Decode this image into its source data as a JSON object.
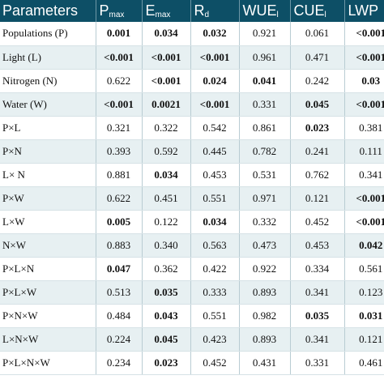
{
  "headers": [
    {
      "main": "Parameters",
      "sub": ""
    },
    {
      "main": "P",
      "sub": "max"
    },
    {
      "main": "E",
      "sub": "max"
    },
    {
      "main": "R",
      "sub": "d"
    },
    {
      "main": "WUE",
      "sub": "l"
    },
    {
      "main": "CUE",
      "sub": "l"
    },
    {
      "main": "LWP",
      "sub": ""
    }
  ],
  "rows": [
    {
      "label": "Populations (P)",
      "values": [
        "0.001",
        "0.034",
        "0.032",
        "0.921",
        "0.061",
        "<0.001"
      ],
      "bold": [
        true,
        true,
        true,
        false,
        false,
        true
      ]
    },
    {
      "label": "Light (L)",
      "values": [
        "<0.001",
        "<0.001",
        "<0.001",
        "0.961",
        "0.471",
        "<0.001"
      ],
      "bold": [
        true,
        true,
        true,
        false,
        false,
        true
      ]
    },
    {
      "label": "Nitrogen (N)",
      "values": [
        "0.622",
        "<0.001",
        "0.024",
        "0.041",
        "0.242",
        "0.03"
      ],
      "bold": [
        false,
        true,
        true,
        true,
        false,
        true
      ]
    },
    {
      "label": "Water (W)",
      "values": [
        "<0.001",
        "0.0021",
        "<0.001",
        "0.331",
        "0.045",
        "<0.001"
      ],
      "bold": [
        true,
        true,
        true,
        false,
        true,
        true
      ]
    },
    {
      "label": "P×L",
      "values": [
        "0.321",
        "0.322",
        "0.542",
        "0.861",
        "0.023",
        "0.381"
      ],
      "bold": [
        false,
        false,
        false,
        false,
        true,
        false
      ]
    },
    {
      "label": "P×N",
      "values": [
        "0.393",
        "0.592",
        "0.445",
        "0.782",
        "0.241",
        "0.111"
      ],
      "bold": [
        false,
        false,
        false,
        false,
        false,
        false
      ]
    },
    {
      "label": "L× N",
      "values": [
        "0.881",
        "0.034",
        "0.453",
        "0.531",
        "0.762",
        "0.341"
      ],
      "bold": [
        false,
        true,
        false,
        false,
        false,
        false
      ]
    },
    {
      "label": "P×W",
      "values": [
        "0.622",
        "0.451",
        "0.551",
        "0.971",
        "0.121",
        "<0.001"
      ],
      "bold": [
        false,
        false,
        false,
        false,
        false,
        true
      ]
    },
    {
      "label": "L×W",
      "values": [
        "0.005",
        "0.122",
        "0.034",
        "0.332",
        "0.452",
        "<0.001"
      ],
      "bold": [
        true,
        false,
        true,
        false,
        false,
        true
      ]
    },
    {
      "label": "N×W",
      "values": [
        "0.883",
        "0.340",
        "0.563",
        "0.473",
        "0.453",
        "0.042"
      ],
      "bold": [
        false,
        false,
        false,
        false,
        false,
        true
      ]
    },
    {
      "label": "P×L×N",
      "values": [
        "0.047",
        "0.362",
        "0.422",
        "0.922",
        "0.334",
        "0.561"
      ],
      "bold": [
        true,
        false,
        false,
        false,
        false,
        false
      ]
    },
    {
      "label": "P×L×W",
      "values": [
        "0.513",
        "0.035",
        "0.333",
        "0.893",
        "0.341",
        "0.123"
      ],
      "bold": [
        false,
        true,
        false,
        false,
        false,
        false
      ]
    },
    {
      "label": "P×N×W",
      "values": [
        "0.484",
        "0.043",
        "0.551",
        "0.982",
        "0.035",
        "0.031"
      ],
      "bold": [
        false,
        true,
        false,
        false,
        true,
        true
      ]
    },
    {
      "label": "L×N×W",
      "values": [
        "0.224",
        "0.045",
        "0.423",
        "0.893",
        "0.341",
        "0.121"
      ],
      "bold": [
        false,
        true,
        false,
        false,
        false,
        false
      ]
    },
    {
      "label": "P×L×N×W",
      "values": [
        "0.234",
        "0.023",
        "0.452",
        "0.431",
        "0.331",
        "0.461"
      ],
      "bold": [
        false,
        true,
        false,
        false,
        false,
        false
      ]
    }
  ]
}
